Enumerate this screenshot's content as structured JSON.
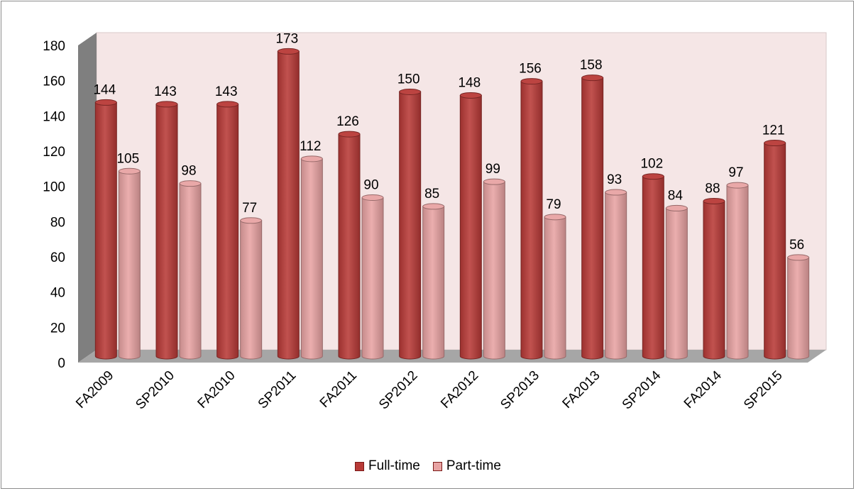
{
  "chart_data": {
    "type": "bar",
    "style": "3d-cylinder-clustered",
    "categories": [
      "FA2009",
      "SP2010",
      "FA2010",
      "SP2011",
      "FA2011",
      "SP2012",
      "FA2012",
      "SP2013",
      "FA2013",
      "SP2014",
      "FA2014",
      "SP2015"
    ],
    "series": [
      {
        "name": "Full-time",
        "values": [
          144,
          143,
          143,
          173,
          126,
          150,
          148,
          156,
          158,
          102,
          88,
          121
        ],
        "color": "#b83a37"
      },
      {
        "name": "Part-time",
        "values": [
          105,
          98,
          77,
          112,
          90,
          85,
          99,
          79,
          93,
          84,
          97,
          56
        ],
        "color": "#e8a3a3"
      }
    ],
    "title": "",
    "xlabel": "",
    "ylabel": "",
    "ylim": [
      0,
      180
    ],
    "yticks": [
      "0",
      "20",
      "40",
      "60",
      "80",
      "100",
      "120",
      "140",
      "160",
      "180"
    ],
    "grid": false,
    "legend_position": "bottom",
    "data_labels": true,
    "colors": {
      "back_wall": "#f5e6e6",
      "side_wall": "#7f7f7f",
      "floor": "#a6a6a6"
    }
  }
}
